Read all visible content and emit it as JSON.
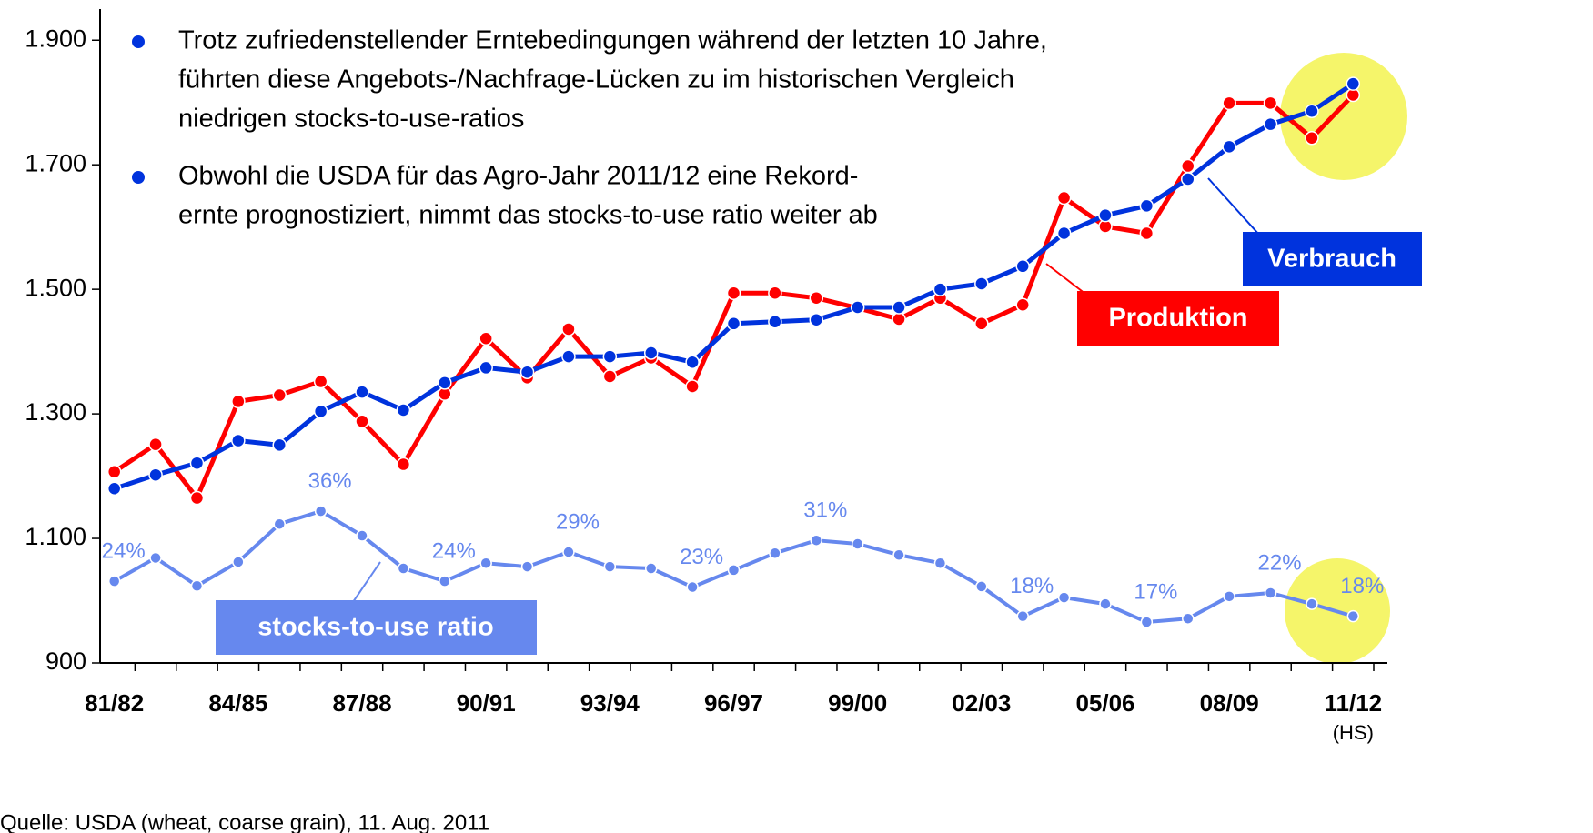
{
  "chart_data": {
    "type": "line",
    "categories": [
      "81/82",
      null,
      null,
      "84/85",
      null,
      null,
      "87/88",
      null,
      null,
      "90/91",
      null,
      null,
      "93/94",
      null,
      null,
      "96/97",
      null,
      null,
      "99/00",
      null,
      null,
      "02/03",
      null,
      null,
      "05/06",
      null,
      null,
      "08/09",
      null,
      null,
      "11/12"
    ],
    "x_annotation": "(HS)",
    "ylim": [
      900,
      1950
    ],
    "yticks": [
      900,
      {
        "value": 1100,
        "label": "1.100"
      },
      {
        "value": 1300,
        "label": "1.300"
      },
      {
        "value": 1500,
        "label": "1.500"
      },
      {
        "value": 1700,
        "label": "1.700"
      },
      {
        "value": 1900,
        "label": "1.900"
      }
    ],
    "y2lim": [
      10,
      122
    ],
    "series": [
      {
        "name": "Produktion",
        "color": "#ff0000",
        "values": [
          1207,
          1251,
          1165,
          1320,
          1330,
          1352,
          1288,
          1219,
          1332,
          1421,
          1358,
          1436,
          1360,
          1390,
          1344,
          1494,
          1494,
          1486,
          1470,
          1452,
          1486,
          1445,
          1475,
          1647,
          1601,
          1590,
          1698,
          1799,
          1799,
          1743,
          1812
        ]
      },
      {
        "name": "Verbrauch",
        "color": "#0033dd",
        "values": [
          1180,
          1202,
          1221,
          1257,
          1250,
          1304,
          1335,
          1306,
          1350,
          1374,
          1367,
          1392,
          1392,
          1398,
          1383,
          1445,
          1448,
          1451,
          1471,
          1471,
          1500,
          1509,
          1537,
          1590,
          1619,
          1634,
          1677,
          1729,
          1765,
          1786,
          1830
        ]
      },
      {
        "name": "stocks-to-use ratio",
        "color": "#6688ee",
        "axis": "y2",
        "values": [
          24,
          28,
          23.2,
          27.3,
          33.8,
          36,
          31.8,
          26.2,
          24,
          27.1,
          26.5,
          29,
          26.5,
          26.2,
          23,
          25.9,
          28.8,
          31,
          30.4,
          28.5,
          27.1,
          23.1,
          18,
          21.2,
          20.1,
          17,
          17.6,
          21.4,
          22,
          20.1,
          18
        ],
        "value_labels": [
          "24%",
          null,
          null,
          null,
          null,
          "36%",
          null,
          null,
          "24%",
          null,
          null,
          "29%",
          null,
          null,
          "23%",
          null,
          null,
          "31%",
          null,
          null,
          null,
          null,
          "18%",
          null,
          null,
          "17%",
          null,
          null,
          "22%",
          null,
          "18%"
        ]
      }
    ],
    "notes": [
      [
        "Trotz zufriedenstellender Erntebedingungen während der letzten 10 Jahre,",
        "führten diese Angebots-/Nachfrage-Lücken zu im historischen Vergleich",
        "niedrigen stocks-to-use-ratios"
      ],
      [
        "Obwohl die USDA für das Agro-Jahr 2011/12 eine Rekord-",
        "ernte prognostiziert, nimmt das stocks-to-use ratio weiter ab"
      ]
    ],
    "source": "Quelle: USDA (wheat, coarse grain), 11. Aug. 2011"
  }
}
